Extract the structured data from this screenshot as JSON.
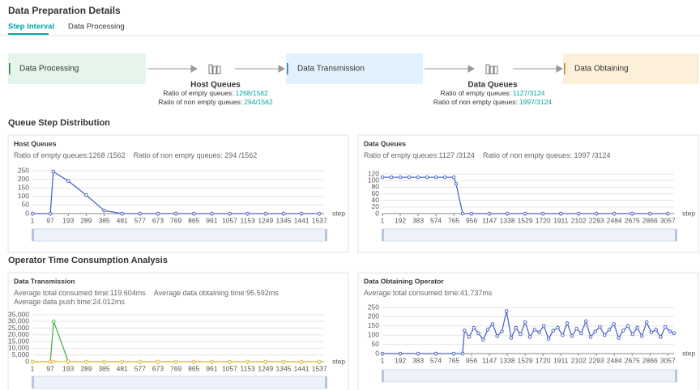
{
  "header": {
    "title": "Data Preparation Details"
  },
  "tabs": [
    {
      "label": "Step Interval",
      "active": true
    },
    {
      "label": "Data Processing",
      "active": false
    }
  ],
  "pipeline": {
    "stages": [
      "Data Processing",
      "Data Transmission",
      "Data Obtaining"
    ],
    "queues": [
      {
        "title": "Host Queues",
        "empty_label": "Ratio of empty queues:",
        "empty_value": "1268/1562",
        "non_empty_label": "Ratio of non empty queues:",
        "non_empty_value": "294/1562"
      },
      {
        "title": "Data Queues",
        "empty_label": "Ratio of empty queues:",
        "empty_value": "1127/3124",
        "non_empty_label": "Ratio of non empty queues:",
        "non_empty_value": "1997/3124"
      }
    ]
  },
  "sections": [
    "Queue Step Distribution",
    "Operator Time Consumption Analysis"
  ],
  "chart_data": [
    {
      "type": "line",
      "title": "Host Queues",
      "subtitle": [
        "Ratio of empty queues:1268 /1562",
        "Ratio of non empty queues: 294 /1562"
      ],
      "x_label": "step",
      "x": [
        1,
        97,
        113,
        193,
        289,
        385,
        481,
        577,
        673,
        769,
        865,
        961,
        1057,
        1153,
        1249,
        1345,
        1441,
        1537
      ],
      "series": [
        {
          "color": "#4e66c4",
          "values": [
            0,
            0,
            245,
            190,
            108,
            18,
            0,
            0,
            0,
            0,
            0,
            0,
            0,
            0,
            0,
            0,
            0,
            0
          ]
        }
      ],
      "xlim": [
        1,
        1562
      ],
      "xticks": [
        1,
        97,
        193,
        289,
        385,
        481,
        577,
        673,
        769,
        865,
        961,
        1057,
        1153,
        1249,
        1345,
        1441,
        1537
      ],
      "ylim": [
        0,
        250
      ],
      "yticks": [
        0,
        50,
        100,
        150,
        200,
        250
      ],
      "grid": true
    },
    {
      "type": "line",
      "title": "Data Queues",
      "subtitle": [
        "Ratio of empty queues:1127 /3124",
        "Ratio of non empty queues: 1997 /3124"
      ],
      "x_label": "step",
      "x": [
        1,
        97,
        192,
        288,
        383,
        479,
        574,
        670,
        765,
        790,
        860,
        956,
        1147,
        1338,
        1529,
        1720,
        1911,
        2102,
        2293,
        2484,
        2675,
        2866,
        3057
      ],
      "series": [
        {
          "color": "#4e66c4",
          "values": [
            110,
            110,
            110,
            110,
            110,
            110,
            110,
            110,
            110,
            90,
            0,
            0,
            0,
            0,
            0,
            0,
            0,
            0,
            0,
            0,
            0,
            0,
            0
          ]
        }
      ],
      "xlim": [
        1,
        3124
      ],
      "xticks": [
        1,
        192,
        383,
        574,
        765,
        956,
        1147,
        1338,
        1529,
        1720,
        1911,
        2102,
        2293,
        2484,
        2675,
        2866,
        3057
      ],
      "ylim": [
        0,
        120
      ],
      "yticks": [
        0,
        20,
        40,
        60,
        80,
        100,
        120
      ],
      "grid": true
    },
    {
      "type": "line",
      "title": "Data Transmission",
      "subtitle": [
        "Average total consumed time:119.604ms",
        "Average data obtaining time:95.592ms",
        "Average data push time:24.012ms"
      ],
      "x_label": "step",
      "x": [
        1,
        97,
        115,
        193,
        289,
        385,
        481,
        577,
        673,
        769,
        865,
        961,
        1057,
        1153,
        1249,
        1345,
        1441,
        1537
      ],
      "series": [
        {
          "color": "#4cb050",
          "values": [
            0,
            0,
            30000,
            0,
            0,
            0,
            0,
            0,
            0,
            0,
            0,
            0,
            0,
            0,
            0,
            0,
            0,
            0
          ]
        },
        {
          "color": "#f4b93a",
          "values": [
            0,
            0,
            0,
            0,
            0,
            0,
            0,
            0,
            0,
            0,
            0,
            0,
            0,
            0,
            0,
            0,
            0,
            0
          ]
        }
      ],
      "xlim": [
        1,
        1562
      ],
      "xticks": [
        1,
        97,
        193,
        289,
        385,
        481,
        577,
        673,
        769,
        865,
        961,
        1057,
        1153,
        1249,
        1345,
        1441,
        1537
      ],
      "ylim": [
        0,
        35000
      ],
      "yticks": [
        0,
        {
          "value": 5000,
          "label": "5,000"
        },
        {
          "value": 10000,
          "label": "10,000"
        },
        {
          "value": 15000,
          "label": "15,000"
        },
        {
          "value": 20000,
          "label": "20,000"
        },
        {
          "value": 25000,
          "label": "25,000"
        },
        {
          "value": 30000,
          "label": "30,000"
        },
        {
          "value": 35000,
          "label": "35,000"
        }
      ],
      "grid": true
    },
    {
      "type": "line",
      "title": "Data Obtaining Operator",
      "subtitle": [
        "Average total consumed time:41.737ms"
      ],
      "x_label": "step",
      "x": [
        1,
        192,
        383,
        574,
        765,
        860,
        880,
        930,
        980,
        1030,
        1080,
        1130,
        1180,
        1230,
        1280,
        1330,
        1380,
        1430,
        1480,
        1530,
        1580,
        1630,
        1680,
        1730,
        1780,
        1830,
        1880,
        1930,
        1980,
        2030,
        2080,
        2130,
        2180,
        2230,
        2280,
        2330,
        2380,
        2430,
        2480,
        2530,
        2580,
        2630,
        2680,
        2730,
        2780,
        2830,
        2880,
        2930,
        2980,
        3030,
        3080,
        3124
      ],
      "series": [
        {
          "color": "#4e66c4",
          "values": [
            0,
            0,
            0,
            0,
            0,
            0,
            125,
            90,
            140,
            110,
            75,
            130,
            160,
            95,
            120,
            230,
            85,
            140,
            105,
            170,
            90,
            130,
            115,
            150,
            80,
            125,
            140,
            100,
            165,
            95,
            135,
            110,
            175,
            90,
            120,
            145,
            100,
            130,
            160,
            85,
            125,
            150,
            105,
            140,
            95,
            170,
            115,
            130,
            90,
            145,
            120,
            110
          ]
        }
      ],
      "xlim": [
        1,
        3124
      ],
      "xticks": [
        1,
        192,
        383,
        574,
        765,
        956,
        1147,
        1338,
        1529,
        1720,
        1911,
        2102,
        2293,
        2484,
        2675,
        2866,
        3057
      ],
      "ylim": [
        0,
        250
      ],
      "yticks": [
        0,
        50,
        100,
        150,
        200,
        250
      ],
      "grid": true
    }
  ]
}
